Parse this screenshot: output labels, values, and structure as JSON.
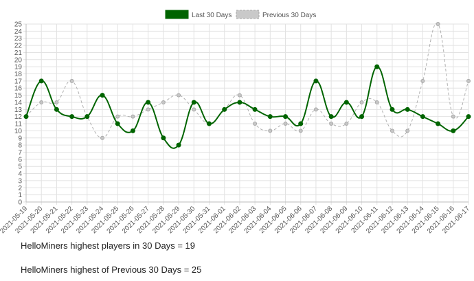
{
  "chart_data": {
    "type": "line",
    "categories": [
      "2021-05-19",
      "2021-05-20",
      "2021-05-21",
      "2021-05-22",
      "2021-05-23",
      "2021-05-24",
      "2021-05-25",
      "2021-05-26",
      "2021-05-27",
      "2021-05-28",
      "2021-05-29",
      "2021-05-30",
      "2021-05-31",
      "2021-06-01",
      "2021-06-02",
      "2021-06-03",
      "2021-06-04",
      "2021-06-05",
      "2021-06-06",
      "2021-06-07",
      "2021-06-08",
      "2021-06-09",
      "2021-06-10",
      "2021-06-11",
      "2021-06-12",
      "2021-06-13",
      "2021-06-14",
      "2021-06-15",
      "2021-06-16",
      "2021-06-17"
    ],
    "series": [
      {
        "name": "Last 30 Days",
        "color": "#006400",
        "style": "solid",
        "values": [
          12,
          17,
          13,
          12,
          12,
          15,
          11,
          10,
          14,
          9,
          8,
          14,
          11,
          13,
          14,
          13,
          12,
          12,
          11,
          17,
          12,
          14,
          12,
          19,
          13,
          13,
          12,
          11,
          10,
          12
        ]
      },
      {
        "name": "Previous 30 Days",
        "color": "#b0b0b0",
        "style": "dashed",
        "values": [
          12,
          14,
          14,
          17,
          12,
          9,
          12,
          12,
          13,
          14,
          15,
          13,
          11,
          13,
          15,
          11,
          10,
          11,
          10,
          13,
          11,
          11,
          14,
          14,
          10,
          10,
          17,
          25,
          12,
          17
        ]
      }
    ],
    "ylim": [
      0,
      25
    ],
    "yticks": [
      0,
      1,
      2,
      3,
      4,
      5,
      6,
      7,
      8,
      9,
      10,
      11,
      12,
      13,
      14,
      15,
      16,
      17,
      18,
      19,
      20,
      21,
      22,
      23,
      24,
      25
    ],
    "grid": true,
    "legend": "top-center"
  },
  "stats": {
    "line1": "HelloMiners highest players in 30 Days = 19",
    "line2": "HelloMiners highest of Previous 30 Days = 25"
  }
}
